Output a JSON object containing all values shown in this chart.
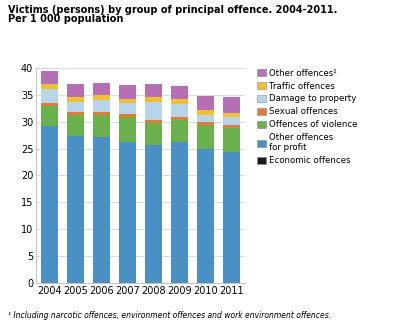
{
  "years": [
    2004,
    2005,
    2006,
    2007,
    2008,
    2009,
    2010,
    2011
  ],
  "categories": [
    "Economic offences",
    "Other offences\nfor profit",
    "Offences of violence",
    "Sexual offences",
    "Damage to property",
    "Traffic offences",
    "Other offences¹"
  ],
  "colors": [
    "#1a1a1a",
    "#4a90c4",
    "#6ab04c",
    "#e07b39",
    "#b8d4e8",
    "#f0c030",
    "#b570b5"
  ],
  "values": {
    "Economic offences": [
      0.1,
      0.1,
      0.1,
      0.1,
      0.1,
      0.1,
      0.1,
      0.1
    ],
    "Other offences\nfor profit": [
      29.0,
      27.2,
      27.0,
      26.2,
      25.5,
      26.1,
      24.8,
      24.2
    ],
    "Offences of violence": [
      3.8,
      4.0,
      4.2,
      4.5,
      4.1,
      4.1,
      4.5,
      4.5
    ],
    "Sexual offences": [
      0.5,
      0.4,
      0.5,
      0.6,
      0.6,
      0.5,
      0.5,
      0.5
    ],
    "Damage to property": [
      2.7,
      2.0,
      2.2,
      2.0,
      3.3,
      2.5,
      1.4,
      1.5
    ],
    "Traffic offences": [
      0.8,
      0.9,
      0.9,
      0.8,
      1.0,
      0.8,
      0.8,
      0.8
    ],
    "Other offences¹": [
      2.4,
      2.4,
      2.3,
      2.6,
      2.4,
      2.5,
      2.7,
      2.9
    ]
  },
  "title_line1": "Victims (persons) by group of principal offence. 2004-2011.",
  "title_line2": "Per 1 000 population",
  "footnote": "¹ Including narcotic offences, environment offences and work environment offences.",
  "ylim": [
    0,
    40
  ],
  "yticks": [
    0,
    5,
    10,
    15,
    20,
    25,
    30,
    35,
    40
  ],
  "background_color": "#ffffff"
}
